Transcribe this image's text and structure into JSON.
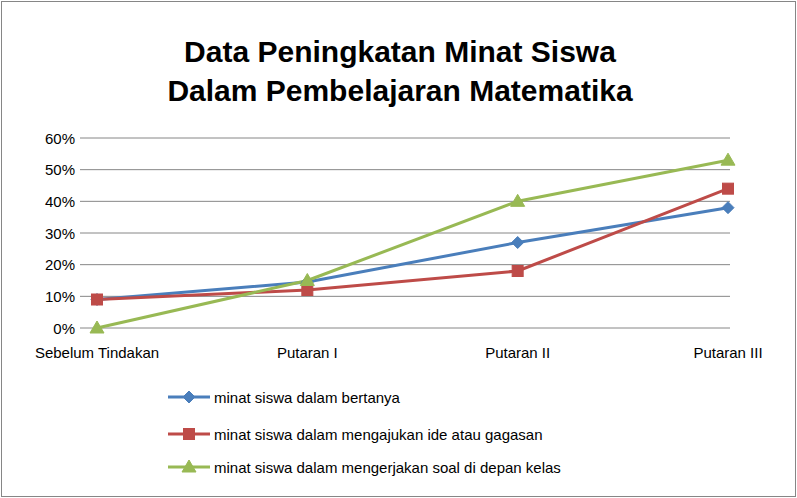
{
  "chart_data": {
    "type": "line",
    "title": "Data Peningkatan Minat Siswa\nDalam Pembelajaran Matematika",
    "categories": [
      "Sebelum Tindakan",
      "Putaran I",
      "Putaran II",
      "Putaran III"
    ],
    "series": [
      {
        "name": "minat siswa dalam bertanya",
        "color": "#4a7ebb",
        "marker": "diamond",
        "values": [
          9,
          14.5,
          27,
          38
        ]
      },
      {
        "name": "minat siswa dalam mengajukan ide atau gagasan",
        "color": "#be4b48",
        "marker": "square",
        "values": [
          9,
          12,
          18,
          44
        ]
      },
      {
        "name": "minat siswa dalam mengerjakan soal di depan kelas",
        "color": "#98b954",
        "marker": "triangle",
        "values": [
          0,
          15,
          40,
          53
        ]
      }
    ],
    "ylim": [
      0,
      60
    ],
    "yticks": [
      {
        "value": 0,
        "label": "0%"
      },
      {
        "value": 10,
        "label": "10%"
      },
      {
        "value": 20,
        "label": "20%"
      },
      {
        "value": 30,
        "label": "30%"
      },
      {
        "value": 40,
        "label": "40%"
      },
      {
        "value": 50,
        "label": "50%"
      },
      {
        "value": 60,
        "label": "60%"
      }
    ],
    "grid": true,
    "legend": "bottom"
  }
}
